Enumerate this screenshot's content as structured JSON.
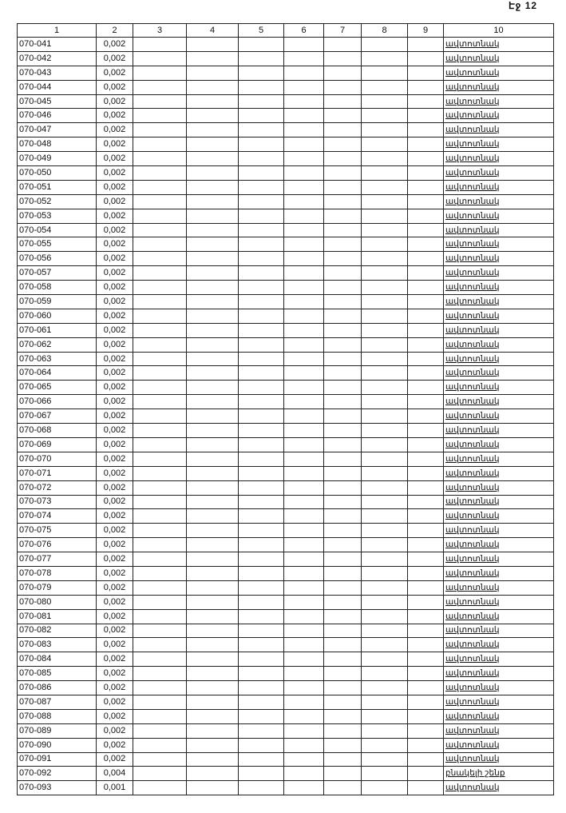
{
  "page_label": "Էջ 12",
  "headers": [
    "1",
    "2",
    "3",
    "4",
    "5",
    "6",
    "7",
    "8",
    "9",
    "10"
  ],
  "rows": [
    [
      "070-041",
      "0,002",
      "ավտոտնակ"
    ],
    [
      "070-042",
      "0,002",
      "ավտոտնակ"
    ],
    [
      "070-043",
      "0,002",
      "ավտոտնակ"
    ],
    [
      "070-044",
      "0,002",
      "ավտոտնակ"
    ],
    [
      "070-045",
      "0,002",
      "ավտոտնակ"
    ],
    [
      "070-046",
      "0,002",
      "ավտոտնակ"
    ],
    [
      "070-047",
      "0,002",
      "ավտոտնակ"
    ],
    [
      "070-048",
      "0,002",
      "ավտոտնակ"
    ],
    [
      "070-049",
      "0,002",
      "ավտոտնակ"
    ],
    [
      "070-050",
      "0,002",
      "ավտոտնակ"
    ],
    [
      "070-051",
      "0,002",
      "ավտոտնակ"
    ],
    [
      "070-052",
      "0,002",
      "ավտոտնակ"
    ],
    [
      "070-053",
      "0,002",
      "ավտոտնակ"
    ],
    [
      "070-054",
      "0,002",
      "ավտոտնակ"
    ],
    [
      "070-055",
      "0,002",
      "ավտոտնակ"
    ],
    [
      "070-056",
      "0,002",
      "ավտոտնակ"
    ],
    [
      "070-057",
      "0,002",
      "ավտոտնակ"
    ],
    [
      "070-058",
      "0,002",
      "ավտոտնակ"
    ],
    [
      "070-059",
      "0,002",
      "ավտոտնակ"
    ],
    [
      "070-060",
      "0,002",
      "ավտոտնակ"
    ],
    [
      "070-061",
      "0,002",
      "ավտոտնակ"
    ],
    [
      "070-062",
      "0,002",
      "ավտոտնակ"
    ],
    [
      "070-063",
      "0,002",
      "ավտոտնակ"
    ],
    [
      "070-064",
      "0,002",
      "ավտոտնակ"
    ],
    [
      "070-065",
      "0,002",
      "ավտոտնակ"
    ],
    [
      "070-066",
      "0,002",
      "ավտոտնակ"
    ],
    [
      "070-067",
      "0,002",
      "ավտոտնակ"
    ],
    [
      "070-068",
      "0,002",
      "ավտոտնակ"
    ],
    [
      "070-069",
      "0,002",
      "ավտոտնակ"
    ],
    [
      "070-070",
      "0,002",
      "ավտոտնակ"
    ],
    [
      "070-071",
      "0,002",
      "ավտոտնակ"
    ],
    [
      "070-072",
      "0,002",
      "ավտոտնակ"
    ],
    [
      "070-073",
      "0,002",
      "ավտոտնակ"
    ],
    [
      "070-074",
      "0,002",
      "ավտոտնակ"
    ],
    [
      "070-075",
      "0,002",
      "ավտոտնակ"
    ],
    [
      "070-076",
      "0,002",
      "ավտոտնակ"
    ],
    [
      "070-077",
      "0,002",
      "ավտոտնակ"
    ],
    [
      "070-078",
      "0,002",
      "ավտոտնակ"
    ],
    [
      "070-079",
      "0,002",
      "ավտոտնակ"
    ],
    [
      "070-080",
      "0,002",
      "ավտոտնակ"
    ],
    [
      "070-081",
      "0,002",
      "ավտոտնակ"
    ],
    [
      "070-082",
      "0,002",
      "ավտոտնակ"
    ],
    [
      "070-083",
      "0,002",
      "ավտոտնակ"
    ],
    [
      "070-084",
      "0,002",
      "ավտոտնակ"
    ],
    [
      "070-085",
      "0,002",
      "ավտոտնակ"
    ],
    [
      "070-086",
      "0,002",
      "ավտոտնակ"
    ],
    [
      "070-087",
      "0,002",
      "ավտոտնակ"
    ],
    [
      "070-088",
      "0,002",
      "ավտոտնակ"
    ],
    [
      "070-089",
      "0,002",
      "ավտոտնակ"
    ],
    [
      "070-090",
      "0,002",
      "ավտոտնակ"
    ],
    [
      "070-091",
      "0,002",
      "ավտոտնակ"
    ],
    [
      "070-092",
      "0,004",
      "բնակելի շենք"
    ],
    [
      "070-093",
      "0,001",
      "ավտոտնակ"
    ]
  ]
}
